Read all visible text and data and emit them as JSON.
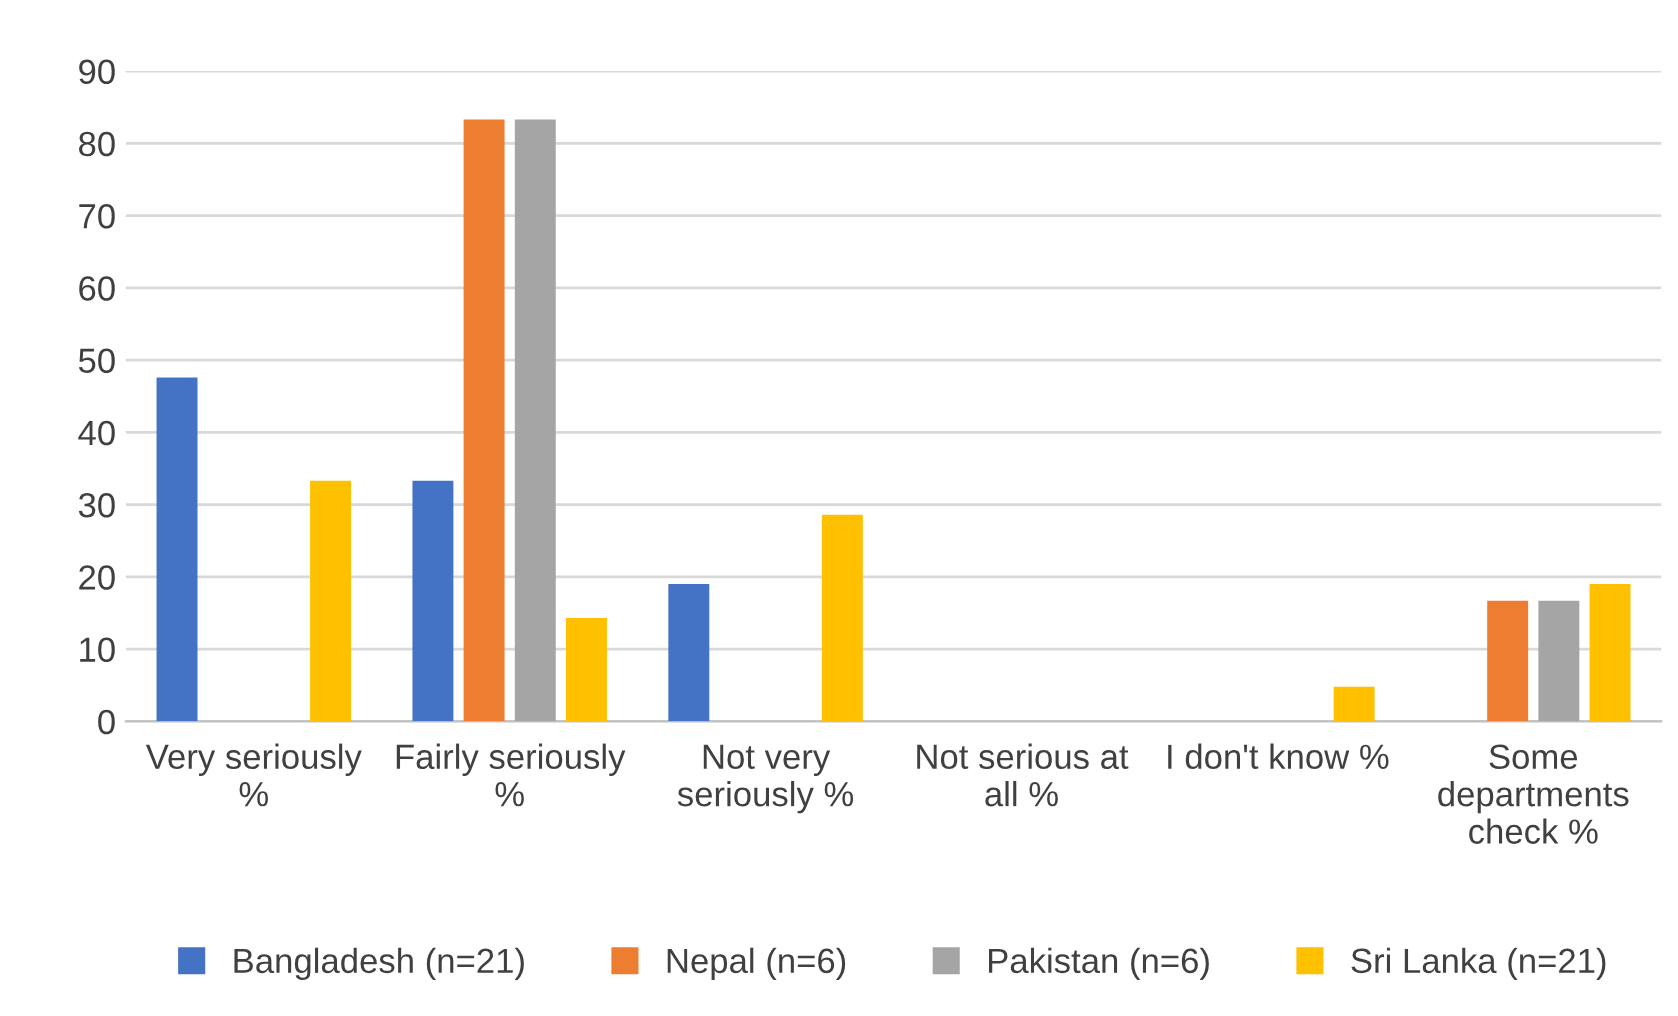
{
  "chart_data": {
    "type": "bar",
    "categories": [
      "Very seriously\n%",
      "Fairly seriously\n%",
      "Not very\nseriously %",
      "Not serious at\nall %",
      "I don't know %",
      "Some\ndepartments\ncheck %"
    ],
    "series": [
      {
        "name": "Bangladesh (n=21)",
        "color": "#4472c4",
        "values": [
          47.6,
          33.3,
          19.0,
          0,
          0,
          0
        ]
      },
      {
        "name": "Nepal (n=6)",
        "color": "#ed7d31",
        "values": [
          0,
          83.3,
          0,
          0,
          0,
          16.7
        ]
      },
      {
        "name": "Pakistan (n=6)",
        "color": "#a5a5a5",
        "values": [
          0,
          83.3,
          0,
          0,
          0,
          16.7
        ]
      },
      {
        "name": "Sri Lanka (n=21)",
        "color": "#ffc000",
        "values": [
          33.3,
          14.3,
          28.6,
          0,
          4.8,
          19.0
        ]
      }
    ],
    "ylim": [
      0,
      90
    ],
    "yticks": [
      0,
      10,
      20,
      30,
      40,
      50,
      60,
      70,
      80,
      90
    ],
    "grid": "y",
    "legend": "bottom"
  }
}
